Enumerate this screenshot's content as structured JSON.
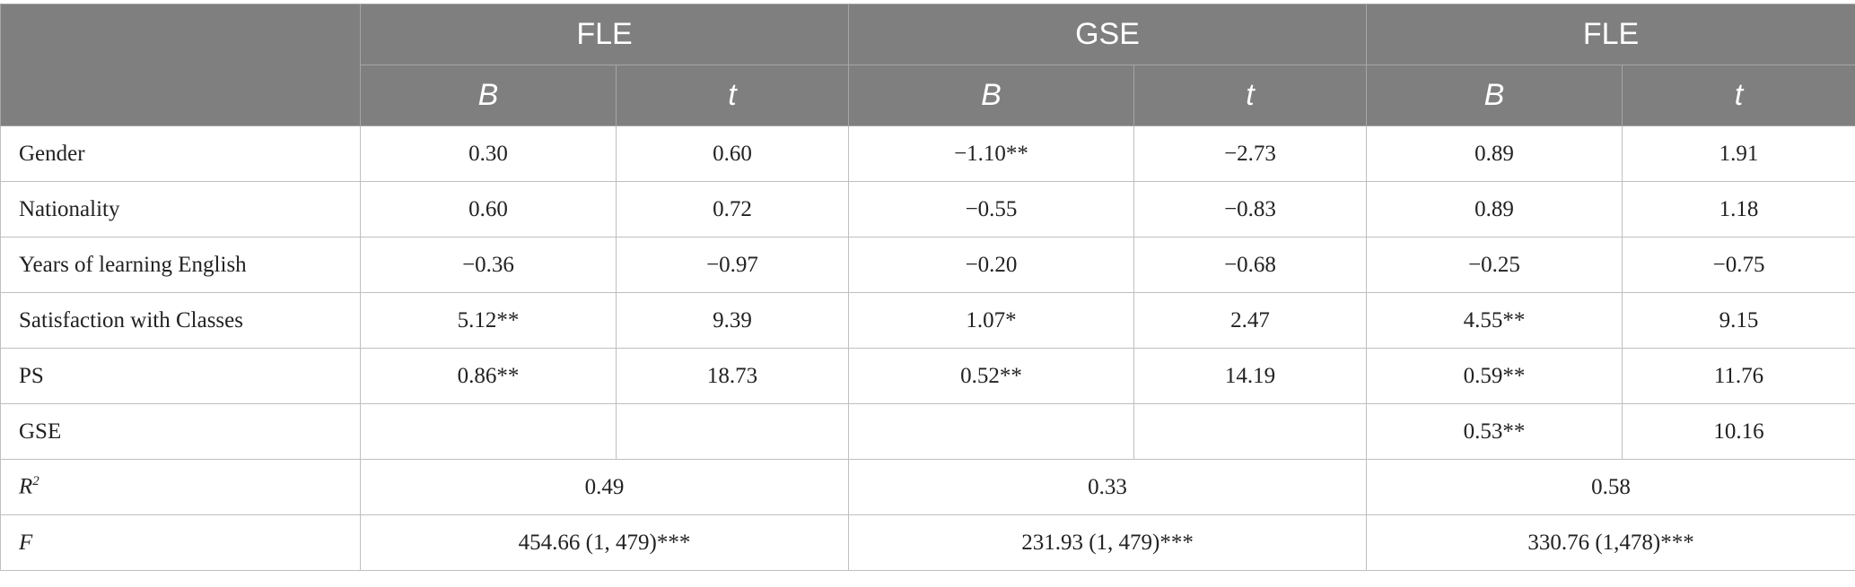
{
  "header": {
    "groups": [
      "FLE",
      "GSE",
      "FLE"
    ],
    "sub": [
      "B",
      "t",
      "B",
      "t",
      "B",
      "t"
    ]
  },
  "rows": [
    {
      "label": "Gender",
      "cells": [
        "0.30",
        "0.60",
        "−1.10**",
        "−2.73",
        "0.89",
        "1.91"
      ]
    },
    {
      "label": "Nationality",
      "cells": [
        "0.60",
        "0.72",
        "−0.55",
        "−0.83",
        "0.89",
        "1.18"
      ]
    },
    {
      "label": "Years of learning English",
      "cells": [
        "−0.36",
        "−0.97",
        "−0.20",
        "−0.68",
        "−0.25",
        "−0.75"
      ]
    },
    {
      "label": "Satisfaction with Classes",
      "cells": [
        "5.12**",
        "9.39",
        "1.07*",
        "2.47",
        "4.55**",
        "9.15"
      ]
    },
    {
      "label": "PS",
      "cells": [
        "0.86**",
        "18.73",
        "0.52**",
        "14.19",
        "0.59**",
        "11.76"
      ]
    },
    {
      "label": "GSE",
      "cells": [
        "",
        "",
        "",
        "",
        "0.53**",
        "10.16"
      ]
    }
  ],
  "summary": [
    {
      "label": "R",
      "sup": "2",
      "cells": [
        "0.49",
        "0.33",
        "0.58"
      ]
    },
    {
      "label": "F",
      "cells": [
        "454.66 (1, 479)***",
        "231.93 (1, 479)***",
        "330.76 (1,478)***"
      ]
    }
  ]
}
